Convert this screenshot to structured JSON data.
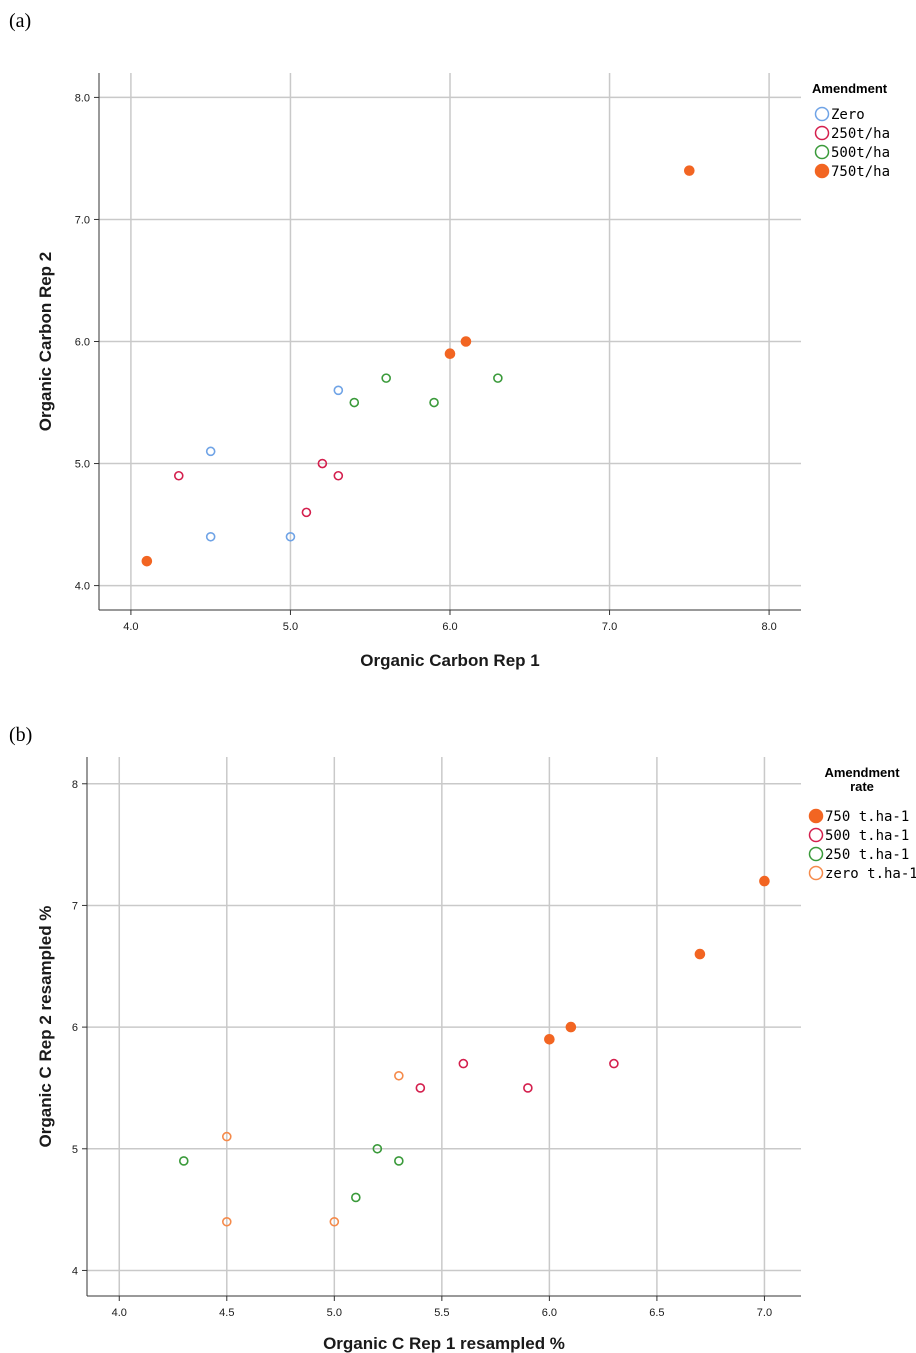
{
  "panels": [
    {
      "label": "(a)"
    },
    {
      "label": "(b)"
    }
  ],
  "chart_data": [
    {
      "type": "scatter",
      "xlabel": "Organic Carbon Rep 1",
      "ylabel": "Organic Carbon  Rep 2",
      "xlim": [
        3.8,
        8.2
      ],
      "ylim": [
        3.8,
        8.2
      ],
      "xticks": [
        "4.0",
        "5.0",
        "6.0",
        "7.0",
        "8.0"
      ],
      "yticks": [
        "4.0",
        "5.0",
        "6.0",
        "7.0",
        "8.0"
      ],
      "grid": true,
      "legend_title": "Amendment",
      "legend_position": "top-right",
      "series": [
        {
          "name": "Zero",
          "color": "#6fa3e6",
          "filled": false,
          "points": [
            [
              4.5,
              5.1
            ],
            [
              4.5,
              4.4
            ],
            [
              5.0,
              4.4
            ],
            [
              5.3,
              5.6
            ]
          ]
        },
        {
          "name": "250t/ha",
          "color": "#d41f4d",
          "filled": false,
          "points": [
            [
              4.3,
              4.9
            ],
            [
              5.1,
              4.6
            ],
            [
              5.2,
              5.0
            ],
            [
              5.3,
              4.9
            ]
          ]
        },
        {
          "name": "500t/ha",
          "color": "#3a9a3a",
          "filled": false,
          "points": [
            [
              5.4,
              5.5
            ],
            [
              5.6,
              5.7
            ],
            [
              5.9,
              5.5
            ],
            [
              6.3,
              5.7
            ]
          ]
        },
        {
          "name": "750t/ha",
          "color": "#f26522",
          "filled": true,
          "points": [
            [
              4.1,
              4.2
            ],
            [
              6.0,
              5.9
            ],
            [
              6.1,
              6.0
            ],
            [
              7.5,
              7.4
            ]
          ]
        }
      ]
    },
    {
      "type": "scatter",
      "xlabel": "Organic C Rep 1 resampled %",
      "ylabel": "Organic C Rep 2 resampled %",
      "xlim": [
        3.85,
        7.17
      ],
      "ylim": [
        3.79,
        8.22
      ],
      "xticks": [
        "4.0",
        "4.5",
        "5.0",
        "5.5",
        "6.0",
        "6.5",
        "7.0"
      ],
      "yticks": [
        "4",
        "5",
        "6",
        "7",
        "8"
      ],
      "grid": true,
      "legend_title": [
        "Amendment",
        "rate"
      ],
      "legend_position": "top-right",
      "series": [
        {
          "name": "750 t.ha-1",
          "color": "#f26522",
          "filled": true,
          "points": [
            [
              6.0,
              5.9
            ],
            [
              6.1,
              6.0
            ],
            [
              6.7,
              6.6
            ],
            [
              7.0,
              7.2
            ]
          ]
        },
        {
          "name": "500 t.ha-1",
          "color": "#d41f4d",
          "filled": false,
          "points": [
            [
              5.4,
              5.5
            ],
            [
              5.6,
              5.7
            ],
            [
              5.9,
              5.5
            ],
            [
              6.3,
              5.7
            ]
          ]
        },
        {
          "name": "250 t.ha-1",
          "color": "#3a9a3a",
          "filled": false,
          "points": [
            [
              4.3,
              4.9
            ],
            [
              5.1,
              4.6
            ],
            [
              5.2,
              5.0
            ],
            [
              5.3,
              4.9
            ]
          ]
        },
        {
          "name": "zero t.ha-1",
          "color": "#f58a4a",
          "filled": false,
          "points": [
            [
              4.5,
              5.1
            ],
            [
              4.5,
              4.4
            ],
            [
              5.0,
              4.4
            ],
            [
              5.3,
              5.6
            ]
          ]
        }
      ]
    }
  ]
}
